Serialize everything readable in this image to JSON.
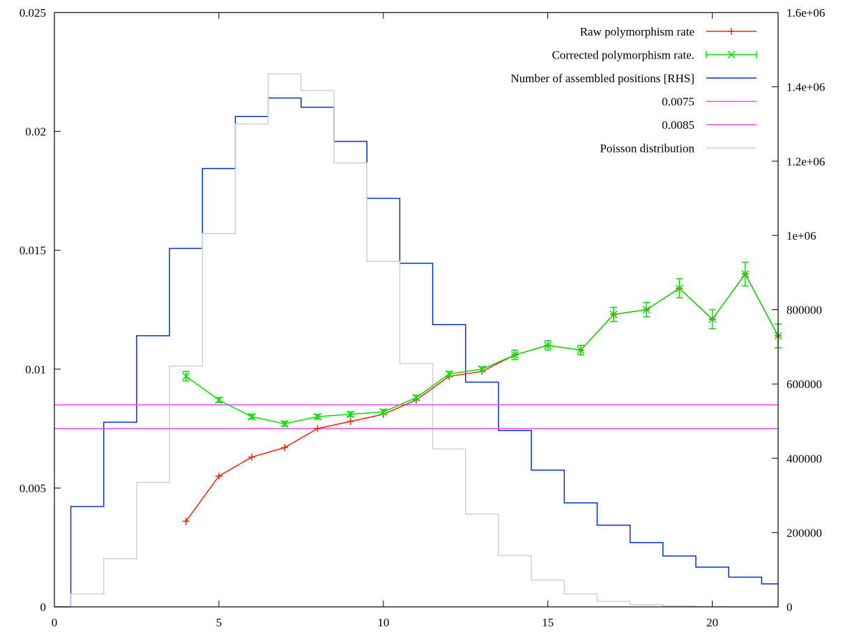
{
  "chart_data": {
    "type": "line",
    "x_axis": {
      "range": [
        0,
        22
      ],
      "ticks": [
        0,
        5,
        10,
        15,
        20
      ],
      "tick_labels": [
        "0",
        "5",
        "10",
        "15",
        "20"
      ]
    },
    "y_axis_left": {
      "range": [
        0,
        0.025
      ],
      "ticks": [
        0,
        0.005,
        0.01,
        0.015,
        0.02,
        0.025
      ],
      "tick_labels": [
        "0",
        "0.005",
        "0.01",
        "0.015",
        "0.02",
        "0.025"
      ]
    },
    "y_axis_right": {
      "range": [
        0,
        1600000
      ],
      "ticks": [
        0,
        200000,
        400000,
        600000,
        800000,
        1000000,
        1200000,
        1400000,
        1600000
      ],
      "tick_labels": [
        "0",
        "200000",
        "400000",
        "600000",
        "800000",
        "1e+06",
        "1.2e+06",
        "1.4e+06",
        "1.6e+06"
      ]
    },
    "grid": false,
    "legend_position": "top-right",
    "series": [
      {
        "name": "Raw polymorphism rate",
        "color": "#ff2000",
        "axis": "left",
        "style": "line-points",
        "marker": "plus",
        "x": [
          4,
          5,
          6,
          7,
          8,
          9,
          10,
          11,
          12,
          13,
          14,
          15,
          16,
          17,
          18,
          19,
          20,
          21,
          22
        ],
        "y": [
          0.0036,
          0.0055,
          0.0063,
          0.0067,
          0.0075,
          0.0078,
          0.0081,
          0.0087,
          0.0097,
          0.0099,
          0.0106,
          0.011,
          0.0108,
          0.0123,
          0.0125,
          0.0134,
          0.0121,
          0.014,
          0.0114
        ]
      },
      {
        "name": "Corrected polymorphism rate.",
        "color": "#00e000",
        "axis": "left",
        "style": "line-errorbars",
        "marker": "cross",
        "x": [
          4,
          5,
          6,
          7,
          8,
          9,
          10,
          11,
          12,
          13,
          14,
          15,
          16,
          17,
          18,
          19,
          20,
          21,
          22
        ],
        "y": [
          0.0097,
          0.0087,
          0.008,
          0.0077,
          0.008,
          0.0081,
          0.0082,
          0.0088,
          0.0098,
          0.01,
          0.0106,
          0.011,
          0.0108,
          0.0123,
          0.0125,
          0.0134,
          0.0121,
          0.014,
          0.0114
        ],
        "err": [
          0.0002,
          0.0001,
          0.0001,
          0.0001,
          0.0001,
          0.0001,
          0.0001,
          0.0001,
          0.0001,
          0.0001,
          0.0002,
          0.0002,
          0.0002,
          0.0003,
          0.0003,
          0.0004,
          0.0004,
          0.0005,
          0.0005
        ]
      },
      {
        "name": "Number of assembled positions [RHS]",
        "color": "#0030d8",
        "axis": "right",
        "style": "steps",
        "x": [
          0,
          1,
          2,
          3,
          4,
          5,
          6,
          7,
          8,
          9,
          10,
          11,
          12,
          13,
          14,
          15,
          16,
          17,
          18,
          19,
          20,
          21,
          22
        ],
        "y": [
          0,
          270000,
          497000,
          730000,
          965000,
          1180000,
          1320000,
          1370000,
          1345000,
          1253000,
          1100000,
          925000,
          760000,
          605000,
          475000,
          368000,
          280000,
          220000,
          173000,
          137000,
          107000,
          80000,
          62000
        ]
      },
      {
        "name": "0.0075",
        "color": "#ff40ff",
        "axis": "left",
        "style": "hline",
        "y": 0.0075
      },
      {
        "name": "0.0085",
        "color": "#ff40ff",
        "axis": "left",
        "style": "hline",
        "y": 0.0085
      },
      {
        "name": "Poisson distribution",
        "color": "#d0d0d0",
        "axis": "right",
        "style": "steps",
        "x": [
          0,
          1,
          2,
          3,
          4,
          5,
          6,
          7,
          8,
          9,
          10,
          11,
          12,
          13,
          14,
          15,
          16,
          17,
          18,
          19,
          20,
          21,
          22
        ],
        "y": [
          0,
          35000,
          130000,
          335000,
          648000,
          1005000,
          1300000,
          1435000,
          1390000,
          1195000,
          930000,
          655000,
          425000,
          250000,
          138000,
          72000,
          35000,
          15000,
          6000,
          2500,
          800,
          200,
          50
        ]
      }
    ]
  }
}
